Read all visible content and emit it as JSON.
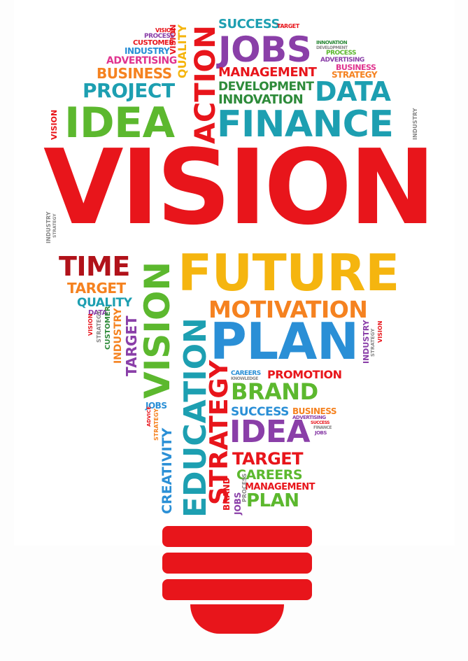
{
  "words": {
    "vision_main": "VISION",
    "idea_top": "IDEA",
    "finance": "FINANCE",
    "innovation": "INNOVATION",
    "development": "DEVELOPMENT",
    "data": "DATA",
    "management_top": "MANAGEMENT",
    "strategy_top": "STRATEGY",
    "jobs_top": "JOBS",
    "success_top": "SUCCESS",
    "target_top": "TARGET",
    "business_right": "BUSINESS",
    "advertising_right": "ADVERTISING",
    "process_right": "PROCESS",
    "development_small": "DEVELOPMENT",
    "innovation_small": "INNOVATION",
    "action": "ACTION",
    "quality_vert": "QUALITY",
    "vision_small_vert": "VISION",
    "project": "PROJECT",
    "business_left": "BUSINESS",
    "advertising_left": "ADVERTISING",
    "industry_left": "INDUSTRY",
    "customer_left": "CUSTOMER",
    "process_left": "PROCESS",
    "vision_left_vert": "VISION",
    "industry_side": "INDUSTRY",
    "strategy_side": "STRATEGY",
    "industry_right_vert": "INDUSTRY",
    "time": "TIME",
    "target_mid": "TARGET",
    "quality_mid": "QUALITY",
    "data_mid": "DATA",
    "future": "FUTURE",
    "motivation": "MOTIVATION",
    "plan_big": "PLAN",
    "vision_vert_big": "VISION",
    "education": "EDUCATION",
    "strategy_vert": "STRATEGY",
    "target_vert": "TARGET",
    "industry_vert": "INDUSTRY",
    "customer_vert": "CUSTOMER",
    "strategy_vert_small": "STRATEGY",
    "vision_vert_small": "VISION",
    "industry_right_small": "INDUSTRY",
    "strategy_right_small": "STRATEGY",
    "vision_right_small": "VISION",
    "careers_small": "CAREERS",
    "knowledge": "KNOWLEDGE",
    "promotion": "PROMOTION",
    "brand": "BRAND",
    "success_mid": "SUCCESS",
    "business_mid": "BUSINESS",
    "advertising_small": "ADVERTISING",
    "success_tiny": "SUCCESS",
    "finance_tiny": "FINANCE",
    "jobs_tiny": "JOBS",
    "idea_low": "IDEA",
    "target_low": "TARGET",
    "careers_low": "CAREERS",
    "management_low": "MANAGEMENT",
    "plan_low": "PLAN",
    "jobs_left": "JOBS",
    "advice": "ADVICE",
    "strategy_left_small": "STRATEGY",
    "creativity": "CREATIVITY",
    "brand_vert": "BRAND",
    "jobs_vert": "JOBS",
    "process_vert": "PROCESS"
  },
  "colors": {
    "red": "#e8151b",
    "green": "#5cb82e",
    "teal": "#1d9fb1",
    "blue": "#2a8fd6",
    "purple": "#8a3fa8",
    "orange": "#f58220",
    "yellow": "#f5b50f",
    "darkred": "#b1121a",
    "pink": "#e0348f",
    "darkgreen": "#2e8b3a"
  }
}
